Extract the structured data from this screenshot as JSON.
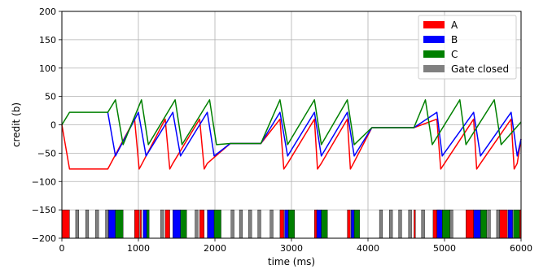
{
  "chart_data": {
    "type": "line",
    "title": "",
    "xlabel": "time (ms)",
    "ylabel": "credit (b)",
    "xlim": [
      0,
      6000
    ],
    "ylim": [
      -200,
      200
    ],
    "xticks": [
      0,
      1000,
      2000,
      3000,
      4000,
      5000,
      6000
    ],
    "xtick_labels": [
      "0",
      "1000",
      "2000",
      "3000",
      "4000",
      "5000",
      "6000"
    ],
    "yticks": [
      -200,
      -150,
      -100,
      -50,
      0,
      50,
      100,
      150,
      200
    ],
    "ytick_labels": [
      "−200",
      "−150",
      "−100",
      "−50",
      "0",
      "50",
      "100",
      "150",
      "200"
    ],
    "grid": true,
    "legend_position": "top-right",
    "legend": [
      "A",
      "B",
      "C",
      "Gate closed"
    ],
    "colors": {
      "A": "#ff0000",
      "B": "#0000ff",
      "C": "#008000",
      "Gate closed": "#808080"
    },
    "series": [
      {
        "name": "A",
        "color": "#ff0000",
        "points": [
          [
            0,
            0
          ],
          [
            100,
            -78
          ],
          [
            600,
            -78
          ],
          [
            950,
            10
          ],
          [
            1010,
            -78
          ],
          [
            1050,
            -68
          ],
          [
            1350,
            10
          ],
          [
            1410,
            -78
          ],
          [
            1450,
            -68
          ],
          [
            1800,
            10
          ],
          [
            1860,
            -78
          ],
          [
            1900,
            -68
          ],
          [
            2200,
            -33
          ],
          [
            2600,
            -33
          ],
          [
            2850,
            10
          ],
          [
            2900,
            -78
          ],
          [
            2950,
            -68
          ],
          [
            3300,
            10
          ],
          [
            3340,
            -78
          ],
          [
            3390,
            -68
          ],
          [
            3730,
            10
          ],
          [
            3770,
            -78
          ],
          [
            3810,
            -68
          ],
          [
            4050,
            -5
          ],
          [
            4600,
            -5
          ],
          [
            4900,
            10
          ],
          [
            4950,
            -78
          ],
          [
            5000,
            -68
          ],
          [
            5380,
            10
          ],
          [
            5420,
            -78
          ],
          [
            5470,
            -68
          ],
          [
            5870,
            10
          ],
          [
            5910,
            -78
          ],
          [
            5950,
            -68
          ],
          [
            6000,
            -25
          ]
        ]
      },
      {
        "name": "B",
        "color": "#0000ff",
        "points": [
          [
            600,
            22
          ],
          [
            700,
            -55
          ],
          [
            1000,
            22
          ],
          [
            1100,
            -55
          ],
          [
            1450,
            22
          ],
          [
            1550,
            -55
          ],
          [
            1900,
            22
          ],
          [
            1990,
            -55
          ],
          [
            2200,
            -33
          ],
          [
            2600,
            -33
          ],
          [
            2850,
            22
          ],
          [
            2950,
            -55
          ],
          [
            3300,
            22
          ],
          [
            3390,
            -55
          ],
          [
            3730,
            22
          ],
          [
            3820,
            -55
          ],
          [
            4050,
            -5
          ],
          [
            4600,
            -5
          ],
          [
            4900,
            22
          ],
          [
            4970,
            -55
          ],
          [
            5380,
            22
          ],
          [
            5470,
            -55
          ],
          [
            5870,
            22
          ],
          [
            5950,
            -55
          ],
          [
            6000,
            -25
          ]
        ]
      },
      {
        "name": "C",
        "color": "#008000",
        "points": [
          [
            0,
            0
          ],
          [
            100,
            22
          ],
          [
            600,
            22
          ],
          [
            700,
            44
          ],
          [
            800,
            -35
          ],
          [
            1040,
            44
          ],
          [
            1130,
            -35
          ],
          [
            1480,
            44
          ],
          [
            1570,
            -35
          ],
          [
            1930,
            44
          ],
          [
            2020,
            -35
          ],
          [
            2200,
            -33
          ],
          [
            2600,
            -33
          ],
          [
            2850,
            44
          ],
          [
            2950,
            -35
          ],
          [
            3300,
            44
          ],
          [
            3390,
            -35
          ],
          [
            3730,
            44
          ],
          [
            3820,
            -35
          ],
          [
            4050,
            -5
          ],
          [
            4600,
            -5
          ],
          [
            4750,
            44
          ],
          [
            4840,
            -35
          ],
          [
            5200,
            44
          ],
          [
            5280,
            -35
          ],
          [
            5650,
            44
          ],
          [
            5740,
            -35
          ],
          [
            6000,
            5
          ]
        ]
      }
    ],
    "gate_bars": [
      {
        "label": "A",
        "spans": [
          [
            0,
            100
          ],
          [
            950,
            1010
          ],
          [
            1020,
            1040
          ],
          [
            1350,
            1410
          ],
          [
            1800,
            1860
          ],
          [
            2850,
            2900
          ],
          [
            3300,
            3340
          ],
          [
            3730,
            3770
          ],
          [
            4600,
            4620
          ],
          [
            4850,
            4950
          ],
          [
            5280,
            5380
          ],
          [
            5720,
            5820
          ],
          [
            5980,
            6000
          ]
        ]
      },
      {
        "label": "B",
        "spans": [
          [
            600,
            700
          ],
          [
            1060,
            1110
          ],
          [
            1450,
            1550
          ],
          [
            1900,
            1990
          ],
          [
            2910,
            2960
          ],
          [
            3330,
            3390
          ],
          [
            3780,
            3820
          ],
          [
            4900,
            4970
          ],
          [
            5380,
            5470
          ],
          [
            5830,
            5890
          ]
        ]
      },
      {
        "label": "C",
        "spans": [
          [
            700,
            800
          ],
          [
            1110,
            1140
          ],
          [
            1550,
            1630
          ],
          [
            1990,
            2080
          ],
          [
            2960,
            3040
          ],
          [
            3390,
            3470
          ],
          [
            3820,
            3890
          ],
          [
            4970,
            5070
          ],
          [
            5470,
            5550
          ],
          [
            5900,
            5980
          ]
        ]
      },
      {
        "label": "Gate closed",
        "spans": [
          [
            180,
            220
          ],
          [
            310,
            350
          ],
          [
            440,
            480
          ],
          [
            570,
            610
          ],
          [
            1290,
            1330
          ],
          [
            1740,
            1780
          ],
          [
            2210,
            2250
          ],
          [
            2320,
            2360
          ],
          [
            2440,
            2480
          ],
          [
            2560,
            2600
          ],
          [
            2720,
            2760
          ],
          [
            4150,
            4190
          ],
          [
            4280,
            4320
          ],
          [
            4400,
            4440
          ],
          [
            4530,
            4570
          ],
          [
            4700,
            4740
          ],
          [
            5070,
            5110
          ],
          [
            5560,
            5600
          ],
          [
            5680,
            5720
          ]
        ]
      }
    ]
  }
}
